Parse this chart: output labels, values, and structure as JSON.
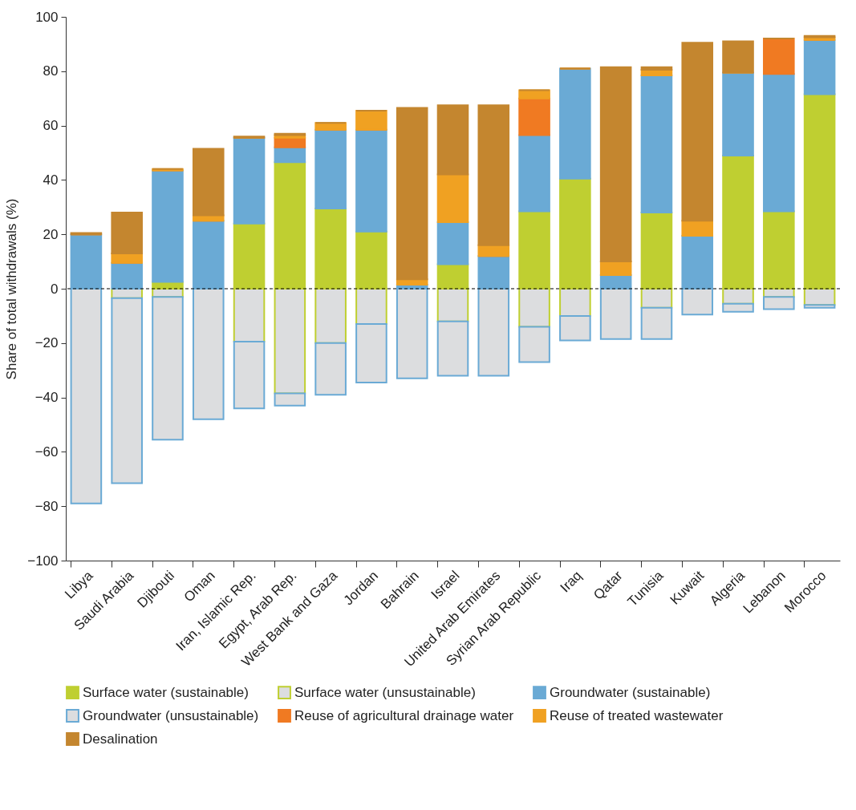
{
  "chart_data": {
    "type": "bar",
    "stacked": true,
    "ylabel": "Share of total withdrawals (%)",
    "categories": [
      "Libya",
      "Saudi Arabia",
      "Djibouti",
      "Oman",
      "Iran, Islamic Rep.",
      "Egypt, Arab Rep.",
      "West Bank and Gaza",
      "Jordan",
      "Bahrain",
      "Israel",
      "United Arab Emirates",
      "Syrian Arab Republic",
      "Iraq",
      "Qatar",
      "Tunisia",
      "Kuwait",
      "Algeria",
      "Lebanon",
      "Morocco"
    ],
    "series": [
      {
        "name": "Surface water (sustainable)",
        "color": "#bfcf31",
        "values": [
          0,
          0,
          2.5,
          0,
          24,
          46.5,
          29.5,
          21,
          0,
          9,
          0,
          28.5,
          40.5,
          0,
          28,
          0,
          49,
          28.5,
          71.5
        ]
      },
      {
        "name": "Surface water (unsustainable)",
        "color": "#bfcf31",
        "values": [
          0,
          -3.5,
          -3,
          0,
          -19.5,
          -38.5,
          -20,
          -13,
          0,
          -12,
          0,
          -14,
          -10,
          0,
          -7,
          0,
          -5.5,
          -3,
          -6
        ]
      },
      {
        "name": "Groundwater (sustainable)",
        "color": "#6aaad5",
        "values": [
          20,
          9.5,
          41,
          25,
          31.5,
          5.5,
          29,
          37.5,
          1.5,
          15.5,
          12,
          28,
          40.5,
          5,
          50.5,
          19.5,
          30.5,
          50.5,
          20
        ]
      },
      {
        "name": "Groundwater (unsustainable)",
        "color": "#6aaad5",
        "values": [
          -79,
          -68,
          -52.5,
          -48,
          -24.5,
          -4.5,
          -19,
          -21.5,
          -33,
          -20,
          -32,
          -13,
          -9,
          -18.5,
          -11.5,
          -9.5,
          -3,
          -4.5,
          -1
        ]
      },
      {
        "name": "Reuse of agricultural drainage water",
        "color": "#f07a22",
        "values": [
          0,
          0,
          0,
          0,
          0,
          3.5,
          0,
          0,
          0,
          0,
          0,
          13.5,
          0,
          0,
          0,
          0,
          0,
          13,
          0
        ]
      },
      {
        "name": "Reuse of treated wastewater",
        "color": "#f0a122",
        "values": [
          0,
          3.5,
          0.5,
          2,
          0,
          1,
          2.5,
          7,
          2,
          17.5,
          4,
          3,
          0,
          5,
          2,
          5.5,
          0,
          0,
          1
        ]
      },
      {
        "name": "Desalination",
        "color": "#c4862f",
        "values": [
          0.5,
          15,
          0,
          24.5,
          0.5,
          0.5,
          0,
          0,
          63,
          25.5,
          51.5,
          0,
          0,
          71.5,
          1,
          65.5,
          11.5,
          0,
          0.5
        ]
      }
    ],
    "ylim": [
      -100,
      100
    ],
    "yticks": [
      -100,
      -80,
      -60,
      -40,
      -20,
      0,
      20,
      40,
      60,
      80,
      100
    ],
    "ref_lines": [
      {
        "axis": "y",
        "value": 0,
        "line_style": "dashed",
        "color": "#000000"
      }
    ],
    "grid": false,
    "legend": "bottom"
  }
}
